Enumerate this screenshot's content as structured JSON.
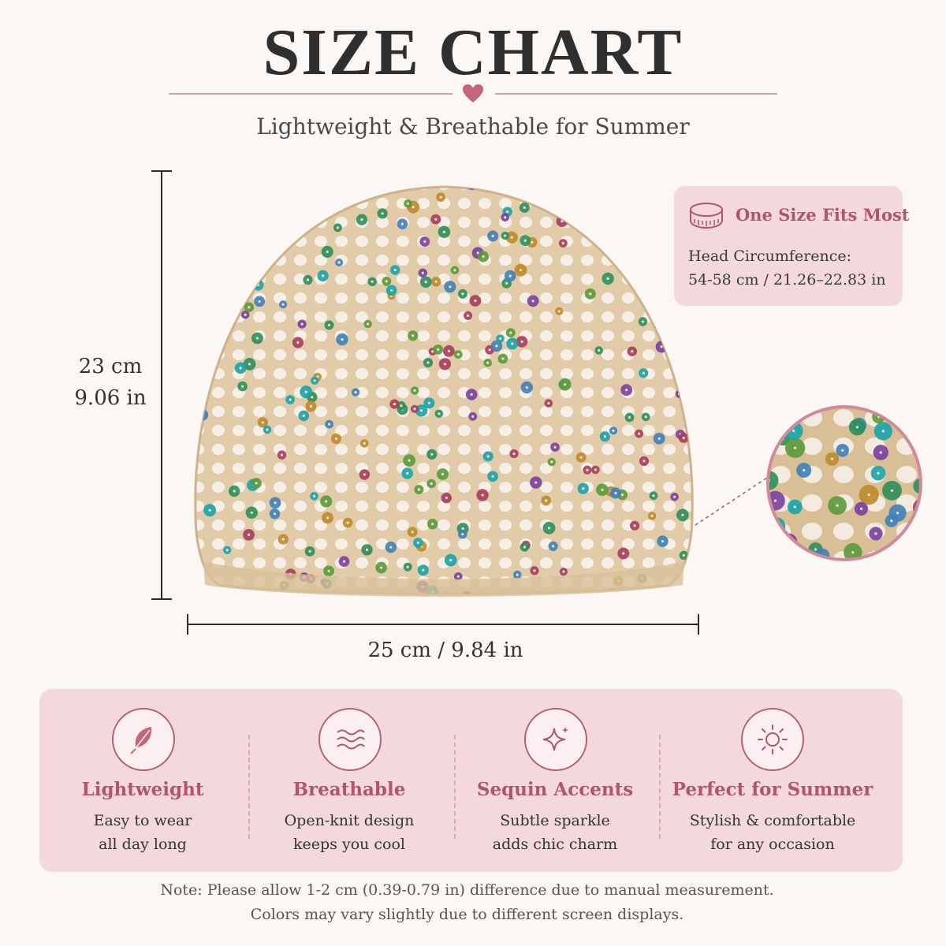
{
  "header": {
    "title": "SIZE CHART",
    "subtitle": "Lightweight & Breathable for Summer",
    "accent_color": "#c4657a"
  },
  "dimensions": {
    "height_cm": "23 cm",
    "height_in": "9.06 in",
    "width": "25 cm / 9.84 in"
  },
  "size_card": {
    "icon": "tape-measure-icon",
    "title": "One Size Fits Most",
    "line1": "Head Circumference:",
    "line2": "54-58 cm / 21.26–22.83 in",
    "background_color": "#f3d9de",
    "title_color": "#b0556b"
  },
  "product": {
    "image": "sequin-crochet-beanie",
    "base_color": "#e2cba9",
    "sequin_colors": [
      "#1aa3a8",
      "#2c8f5a",
      "#7a3f9e",
      "#c08a2a",
      "#3f7fb8",
      "#a83c5a",
      "#5a9a3a"
    ]
  },
  "features": [
    {
      "icon": "feather-icon",
      "title": "Lightweight",
      "line1": "Easy to wear",
      "line2": "all day long"
    },
    {
      "icon": "waves-icon",
      "title": "Breathable",
      "line1": "Open-knit design",
      "line2": "keeps you cool"
    },
    {
      "icon": "sparkle-icon",
      "title": "Sequin Accents",
      "line1": "Subtle sparkle",
      "line2": "adds chic charm"
    },
    {
      "icon": "sun-icon",
      "title": "Perfect for Summer",
      "line1": "Stylish & comfortable",
      "line2": "for any occasion"
    }
  ],
  "notes": {
    "line1": "Note: Please allow 1-2 cm (0.39-0.79 in) difference due to manual measurement.",
    "line2": "Colors may vary slightly due to different screen displays."
  }
}
